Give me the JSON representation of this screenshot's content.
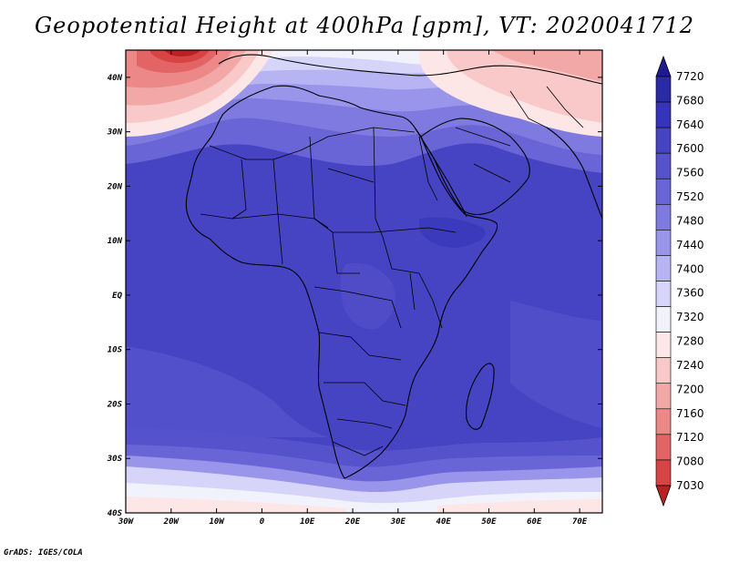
{
  "title": "Geopotential Height at 400hPa [gpm], VT: 2020041712",
  "footer": "GrADS: IGES/COLA",
  "map": {
    "lon_range": [
      -30,
      75
    ],
    "lat_range": [
      -40,
      45
    ],
    "lat_ticks": [
      {
        "value": 40,
        "label": "40N"
      },
      {
        "value": 30,
        "label": "30N"
      },
      {
        "value": 20,
        "label": "20N"
      },
      {
        "value": 10,
        "label": "10N"
      },
      {
        "value": 0,
        "label": "EQ"
      },
      {
        "value": -10,
        "label": "10S"
      },
      {
        "value": -20,
        "label": "20S"
      },
      {
        "value": -30,
        "label": "30S"
      },
      {
        "value": -40,
        "label": "40S"
      }
    ],
    "lon_ticks": [
      {
        "value": -30,
        "label": "30W"
      },
      {
        "value": -20,
        "label": "20W"
      },
      {
        "value": -10,
        "label": "10W"
      },
      {
        "value": 0,
        "label": "0"
      },
      {
        "value": 10,
        "label": "10E"
      },
      {
        "value": 20,
        "label": "20E"
      },
      {
        "value": 30,
        "label": "30E"
      },
      {
        "value": 40,
        "label": "40E"
      },
      {
        "value": 50,
        "label": "50E"
      },
      {
        "value": 60,
        "label": "60E"
      },
      {
        "value": 70,
        "label": "70E"
      }
    ]
  },
  "colorbar": {
    "levels": [
      "7720",
      "7680",
      "7640",
      "7600",
      "7560",
      "7520",
      "7480",
      "7440",
      "7400",
      "7360",
      "7320",
      "7280",
      "7240",
      "7200",
      "7160",
      "7120",
      "7080",
      "7030"
    ],
    "colors": [
      "#1d1b8f",
      "#2b2aa6",
      "#3634b8",
      "#4744c4",
      "#5652cc",
      "#6965d6",
      "#7e7ae0",
      "#9895ea",
      "#b6b4f2",
      "#d6d5f9",
      "#f2f2fd",
      "#fde6e6",
      "#f9c8c8",
      "#f3a8a8",
      "#ec8888",
      "#e36464",
      "#d64444",
      "#b82222"
    ]
  },
  "chart_data": {
    "type": "heatmap",
    "variable": "Geopotential Height at 400hPa",
    "units": "gpm",
    "valid_time": "2020041712",
    "field_samples": [
      {
        "lon": -20,
        "lat": 44,
        "value": 7100
      },
      {
        "lon": -15,
        "lat": 40,
        "value": 7240
      },
      {
        "lon": 10,
        "lat": 42,
        "value": 7360
      },
      {
        "lon": 30,
        "lat": 42,
        "value": 7320
      },
      {
        "lon": 40,
        "lat": 32,
        "value": 7300
      },
      {
        "lon": 0,
        "lat": 30,
        "value": 7480
      },
      {
        "lon": 10,
        "lat": 20,
        "value": 7560
      },
      {
        "lon": -20,
        "lat": 10,
        "value": 7600
      },
      {
        "lon": 10,
        "lat": 0,
        "value": 7600
      },
      {
        "lon": 50,
        "lat": 0,
        "value": 7600
      },
      {
        "lon": 20,
        "lat": -20,
        "value": 7560
      },
      {
        "lon": 0,
        "lat": -30,
        "value": 7480
      },
      {
        "lon": 40,
        "lat": -33,
        "value": 7400
      },
      {
        "lon": 0,
        "lat": -38,
        "value": 7280
      }
    ]
  }
}
